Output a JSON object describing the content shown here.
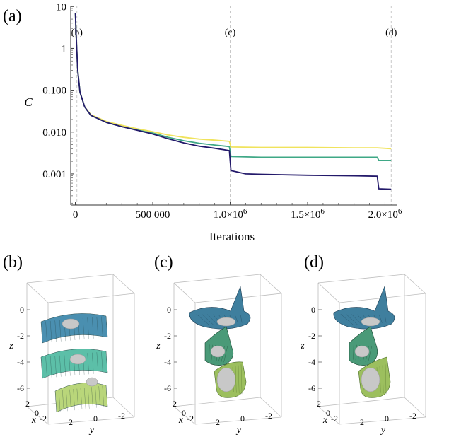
{
  "panel_labels": {
    "a": "(a)",
    "b": "(b)",
    "c": "(c)",
    "d": "(d)"
  },
  "chart_data": [
    {
      "type": "line",
      "title": "",
      "xlabel": "Iterations",
      "ylabel": "C",
      "yscale": "log",
      "xlim": [
        -30000,
        2080000
      ],
      "ylim": [
        0.00018,
        10.5
      ],
      "grid": false,
      "xticks": [
        {
          "value": 0,
          "label": "0"
        },
        {
          "value": 500000,
          "label": "500 000"
        },
        {
          "value": 1000000,
          "label": "1.0",
          "exp": "6"
        },
        {
          "value": 1500000,
          "label": "1.5",
          "exp": "6"
        },
        {
          "value": 2000000,
          "label": "2.0",
          "exp": "6"
        }
      ],
      "yticks": [
        {
          "value": 10,
          "label": "10"
        },
        {
          "value": 1,
          "label": "1"
        },
        {
          "value": 0.1,
          "label": "0.100"
        },
        {
          "value": 0.01,
          "label": "0.010"
        },
        {
          "value": 0.001,
          "label": "0.001"
        }
      ],
      "markers": [
        {
          "x": 10000,
          "label": "(b)"
        },
        {
          "x": 1000000,
          "label": "(c)"
        },
        {
          "x": 2040000,
          "label": "(d)"
        }
      ],
      "series": [
        {
          "name": "yellow",
          "color": "#f0e35c",
          "x": [
            0,
            5000,
            15000,
            30000,
            60000,
            100000,
            200000,
            300000,
            400000,
            500000,
            600000,
            700000,
            800000,
            900000,
            995000,
            1005000,
            1200000,
            1500000,
            1800000,
            1950000,
            2040000
          ],
          "y": [
            7,
            2,
            0.3,
            0.09,
            0.04,
            0.026,
            0.018,
            0.0145,
            0.012,
            0.0102,
            0.0085,
            0.0075,
            0.0068,
            0.0064,
            0.006,
            0.0044,
            0.0043,
            0.0043,
            0.0042,
            0.0042,
            0.004
          ]
        },
        {
          "name": "green",
          "color": "#3fa886",
          "x": [
            0,
            5000,
            15000,
            30000,
            60000,
            100000,
            200000,
            300000,
            400000,
            500000,
            600000,
            700000,
            800000,
            900000,
            995000,
            1005000,
            1200000,
            1500000,
            1800000,
            1950000,
            1960000,
            2040000
          ],
          "y": [
            7,
            2,
            0.3,
            0.09,
            0.04,
            0.025,
            0.017,
            0.0135,
            0.0112,
            0.0095,
            0.0075,
            0.0062,
            0.0054,
            0.0049,
            0.0045,
            0.0026,
            0.0025,
            0.0025,
            0.0025,
            0.0025,
            0.0021,
            0.0021
          ]
        },
        {
          "name": "navy",
          "color": "#23196a",
          "x": [
            0,
            5000,
            15000,
            30000,
            60000,
            100000,
            200000,
            300000,
            400000,
            500000,
            600000,
            700000,
            800000,
            900000,
            995000,
            1005000,
            1100000,
            1200000,
            1500000,
            1800000,
            1950000,
            1960000,
            2040000
          ],
          "y": [
            7,
            2,
            0.3,
            0.09,
            0.04,
            0.025,
            0.017,
            0.0135,
            0.011,
            0.009,
            0.0069,
            0.0055,
            0.0046,
            0.0041,
            0.0036,
            0.0012,
            0.001,
            0.00098,
            0.00093,
            0.0009,
            0.00088,
            0.00044,
            0.00043
          ]
        }
      ]
    },
    {
      "type": "surface3d",
      "panel": "b",
      "xlabel": "x",
      "ylabel": "y",
      "zlabel": "z",
      "zticks": [
        "0",
        "-2",
        "-4",
        "-6"
      ],
      "xticks": [
        "2",
        "0",
        "-2"
      ],
      "yticks": [
        "2",
        "0",
        "-2"
      ],
      "surfaces": [
        {
          "name": "top",
          "color": "#4a8fb0"
        },
        {
          "name": "middle",
          "color": "#5cbfa8"
        },
        {
          "name": "bottom",
          "color": "#b9d67a"
        }
      ]
    },
    {
      "type": "surface3d",
      "panel": "c",
      "xlabel": "x",
      "ylabel": "y",
      "zlabel": "z",
      "zticks": [
        "0",
        "-2",
        "-4",
        "-6"
      ],
      "xticks": [
        "2",
        "0",
        "-2"
      ],
      "yticks": [
        "2",
        "0",
        "-2"
      ],
      "surfaces": [
        {
          "name": "top",
          "color": "#3f7f9e"
        },
        {
          "name": "middle",
          "color": "#4a9a78"
        },
        {
          "name": "bottom",
          "color": "#9cbf5e"
        }
      ]
    },
    {
      "type": "surface3d",
      "panel": "d",
      "xlabel": "x",
      "ylabel": "y",
      "zlabel": "z",
      "zticks": [
        "0",
        "-2",
        "-4",
        "-6"
      ],
      "xticks": [
        "2",
        "0",
        "-2"
      ],
      "yticks": [
        "2",
        "0",
        "-2"
      ],
      "surfaces": [
        {
          "name": "top",
          "color": "#3f7f9e"
        },
        {
          "name": "middle",
          "color": "#4a9a78"
        },
        {
          "name": "bottom",
          "color": "#9cbf5e"
        }
      ]
    }
  ]
}
